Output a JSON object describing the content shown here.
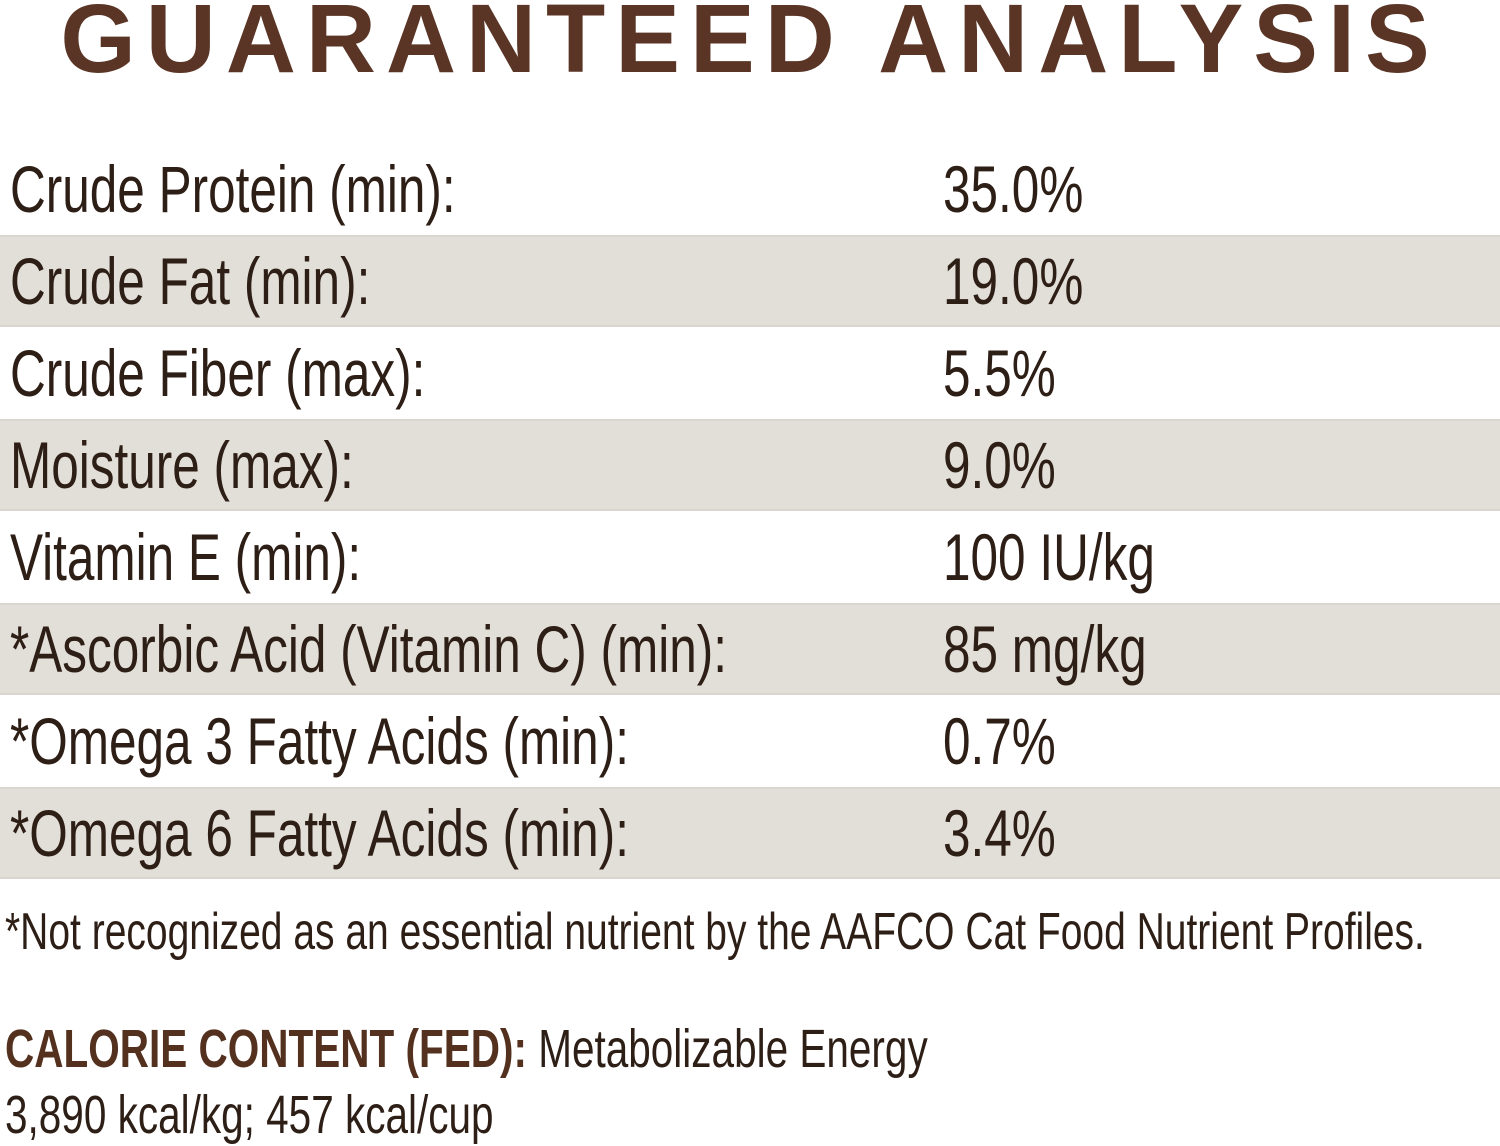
{
  "title": "GUARANTEED ANALYSIS",
  "table": {
    "rows": [
      {
        "label": "Crude Protein (min):",
        "value": "35.0%"
      },
      {
        "label": "Crude Fat (min):",
        "value": "19.0%"
      },
      {
        "label": "Crude Fiber (max):",
        "value": "5.5%"
      },
      {
        "label": "Moisture (max):",
        "value": "9.0%"
      },
      {
        "label": "Vitamin E (min):",
        "value": "100 IU/kg"
      },
      {
        "label": "*Ascorbic Acid (Vitamin C) (min):",
        "value": "85 mg/kg"
      },
      {
        "label": "*Omega 3 Fatty Acids (min):",
        "value": "0.7%"
      },
      {
        "label": "*Omega 6 Fatty Acids (min):",
        "value": "3.4%"
      }
    ]
  },
  "footnote": "*Not recognized as an essential nutrient by the AAFCO Cat Food Nutrient Profiles.",
  "calorie": {
    "heading": "CALORIE CONTENT (FED):",
    "description": "Metabolizable Energy",
    "values": "3,890 kcal/kg; 457 kcal/cup"
  },
  "colors": {
    "title_brown": "#5a3526",
    "calorie_brown": "#53311e",
    "body_text": "#2d1e16",
    "shaded_row": "#e2ded8",
    "background": "#ffffff"
  }
}
